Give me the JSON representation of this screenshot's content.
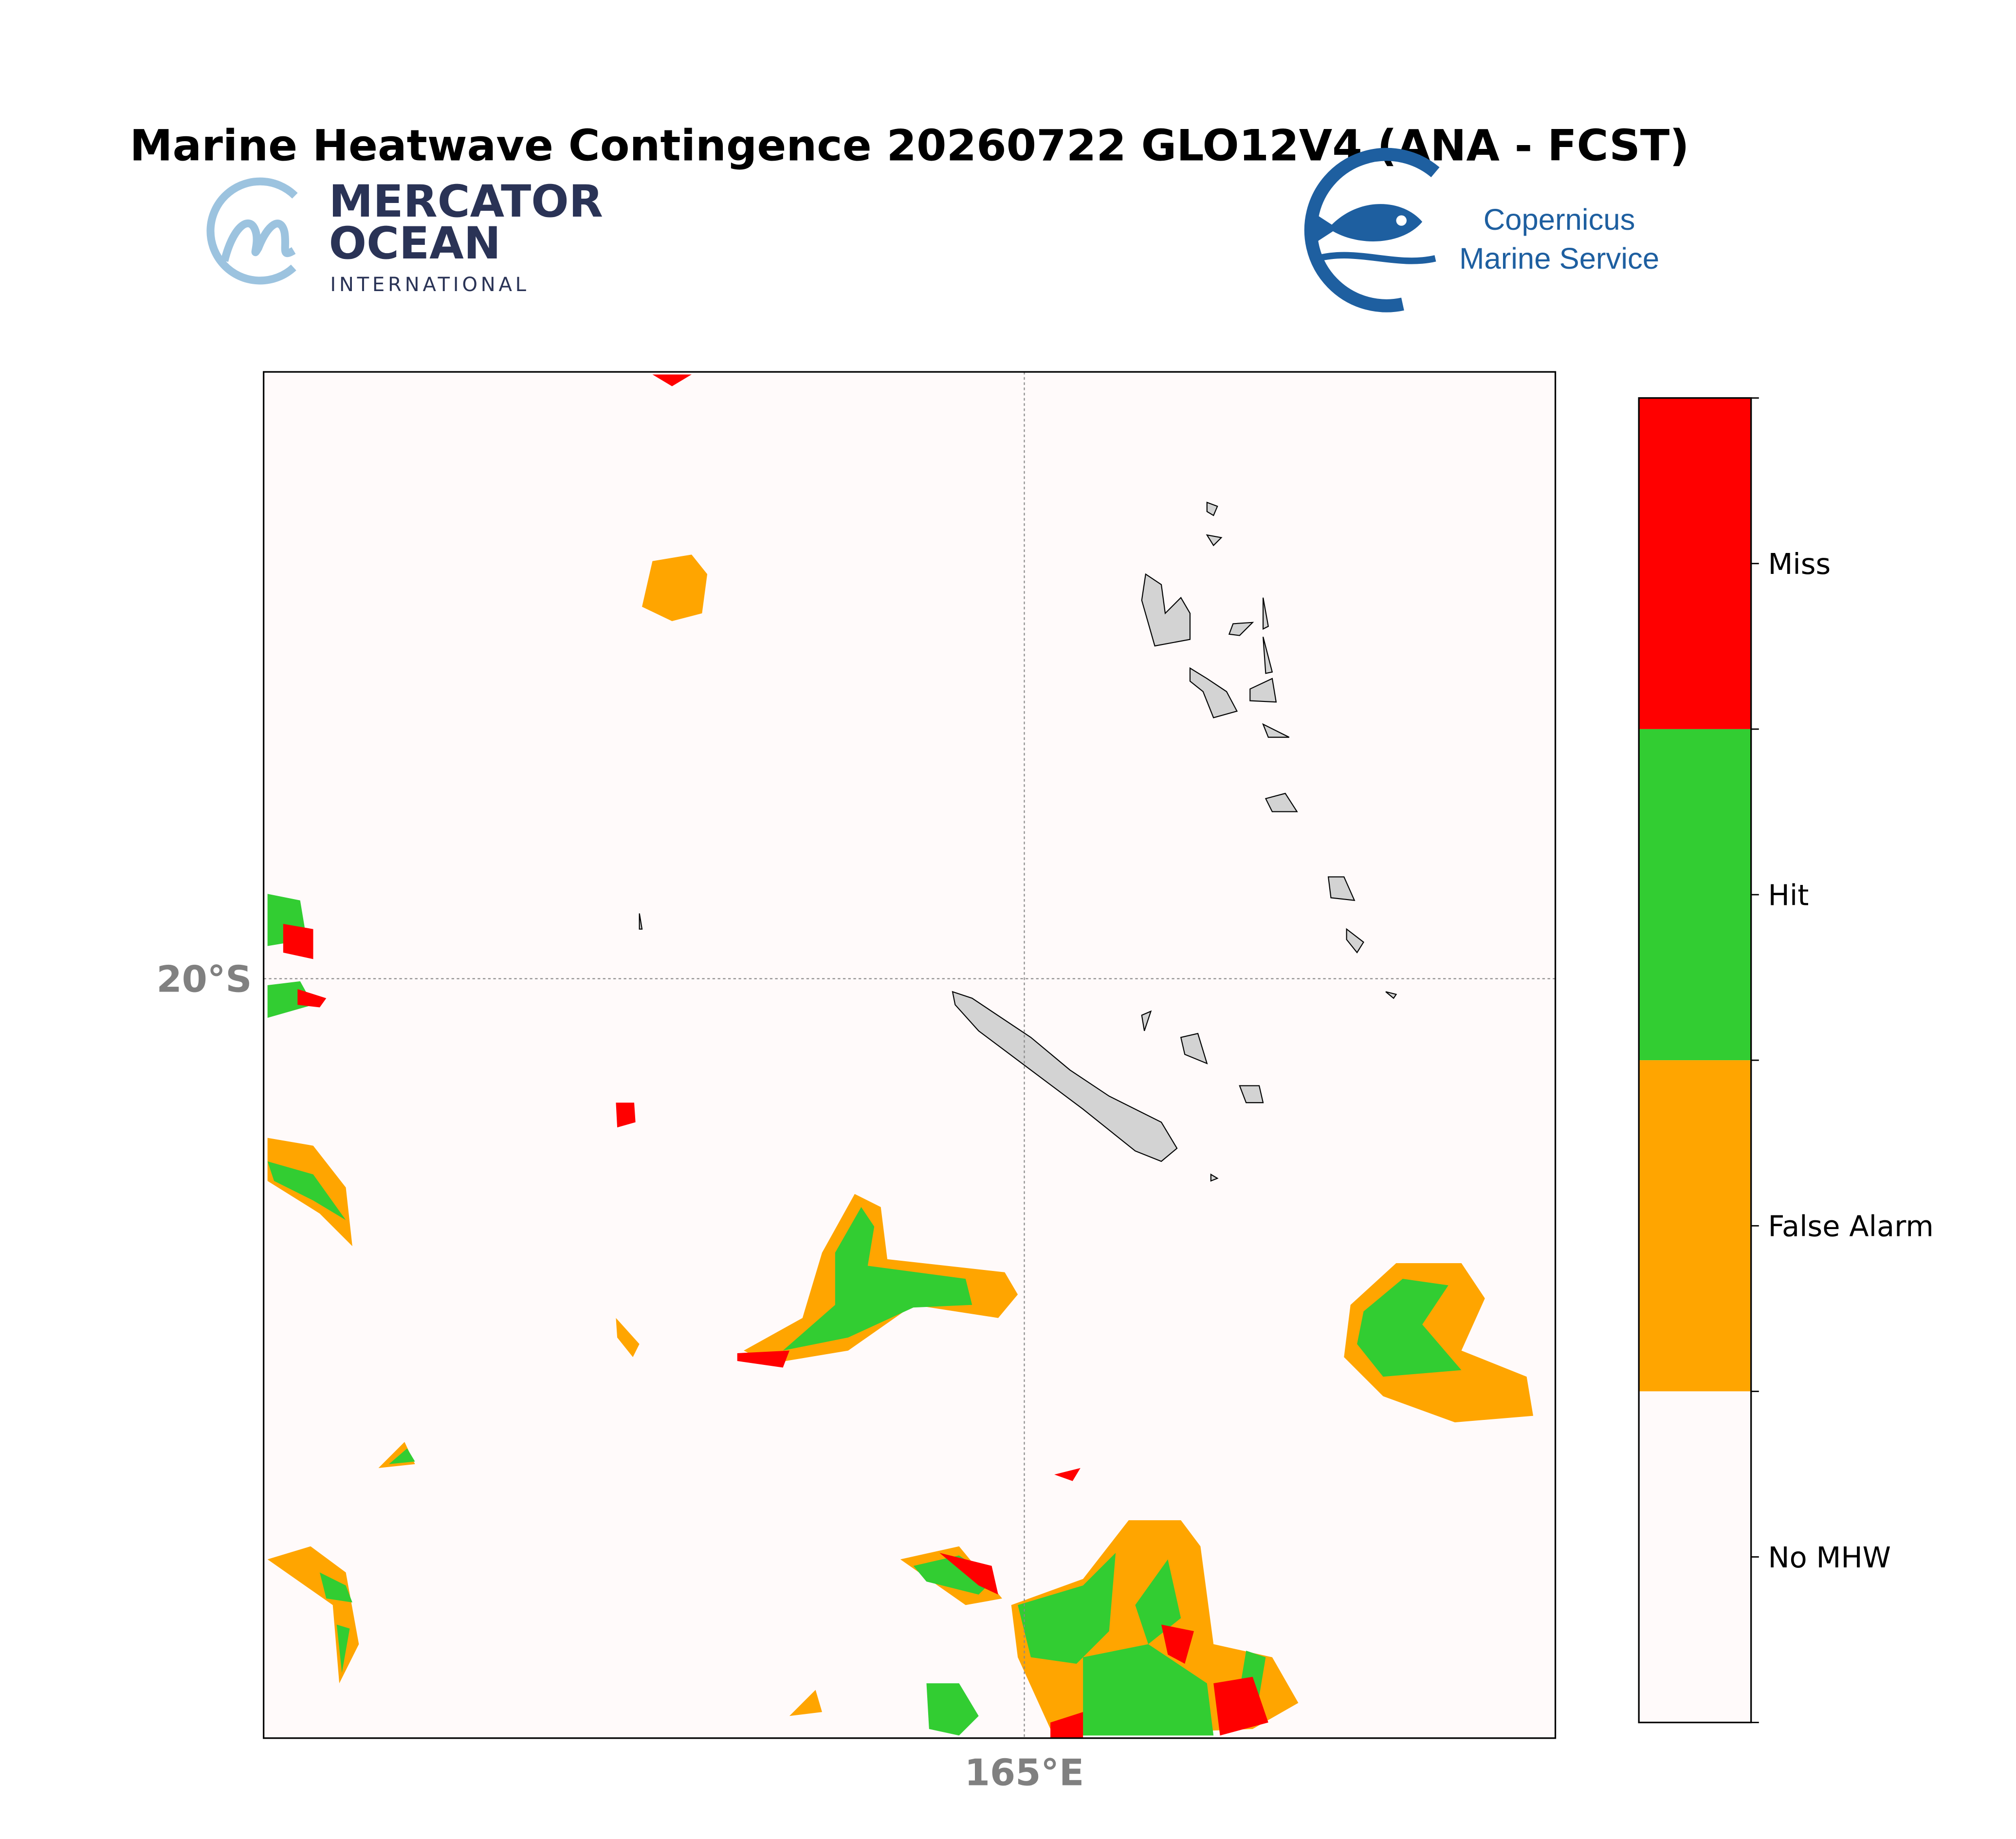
{
  "title": "Marine Heatwave Contingence 20260722 GLO12V4 (ANA - FCST)",
  "logos": {
    "mercator": [
      "MERCATOR",
      "OCEAN",
      "INTERNATIONAL"
    ],
    "copernicus": [
      "Copernicus",
      "Marine Service"
    ]
  },
  "map": {
    "lat_label": "20°S",
    "lon_label": "165°E"
  },
  "legend": {
    "items": [
      {
        "label": "Miss",
        "color": "#ff0000"
      },
      {
        "label": "Hit",
        "color": "#32cd32"
      },
      {
        "label": "False Alarm",
        "color": "#ffa500"
      },
      {
        "label": "No MHW",
        "color": "#fffafa"
      }
    ]
  }
}
